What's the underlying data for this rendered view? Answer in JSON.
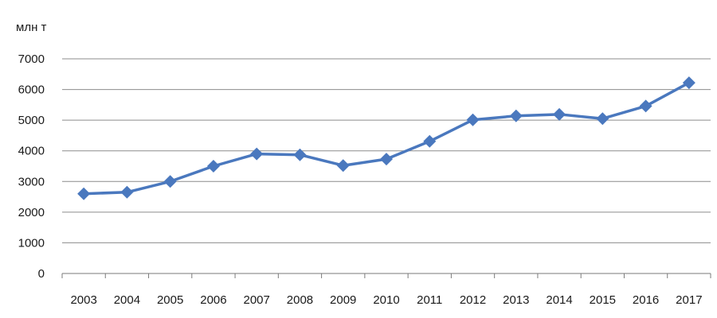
{
  "chart_data": {
    "type": "line",
    "title": "",
    "ylabel": "млн т",
    "xlabel": "",
    "ylim": [
      0,
      7000
    ],
    "yticks": [
      0,
      1000,
      2000,
      3000,
      4000,
      5000,
      6000,
      7000
    ],
    "grid": true,
    "legend": "none",
    "categories": [
      "2003",
      "2004",
      "2005",
      "2006",
      "2007",
      "2008",
      "2009",
      "2010",
      "2011",
      "2012",
      "2013",
      "2014",
      "2015",
      "2016",
      "2017"
    ],
    "series": [
      {
        "color": "#4a78be",
        "marker": "diamond",
        "values": [
          2600,
          2650,
          3000,
          3500,
          3900,
          3870,
          3520,
          3730,
          4310,
          5010,
          5140,
          5190,
          5050,
          5460,
          6220
        ]
      }
    ]
  }
}
